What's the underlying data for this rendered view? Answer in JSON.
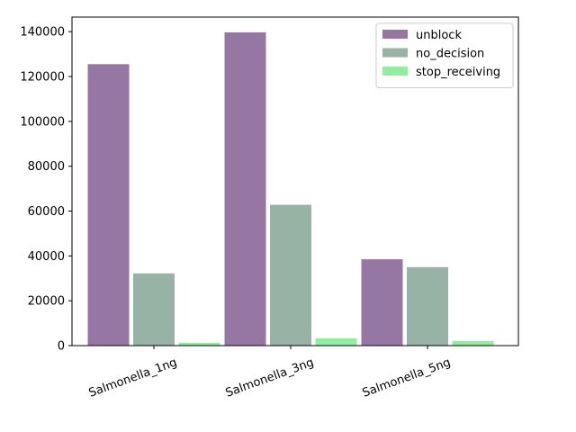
{
  "chart_data": {
    "type": "bar",
    "categories": [
      "Salmonella_1ng",
      "Salmonella_3ng",
      "Salmonella_5ng"
    ],
    "series": [
      {
        "name": "unblock",
        "values": [
          125500,
          139700,
          38500
        ],
        "color": "#9677a3"
      },
      {
        "name": "no_decision",
        "values": [
          32200,
          62800,
          35000
        ],
        "color": "#97b3a6"
      },
      {
        "name": "stop_receiving",
        "values": [
          1300,
          3300,
          2100
        ],
        "color": "#90ee9f"
      }
    ],
    "title": "",
    "xlabel": "",
    "ylabel": "",
    "ylim": [
      0,
      146500
    ],
    "yticks": [
      0,
      20000,
      40000,
      60000,
      80000,
      100000,
      120000,
      140000
    ],
    "xtick_rotation_deg": -20,
    "legend_position": "top-right",
    "grid": false
  }
}
